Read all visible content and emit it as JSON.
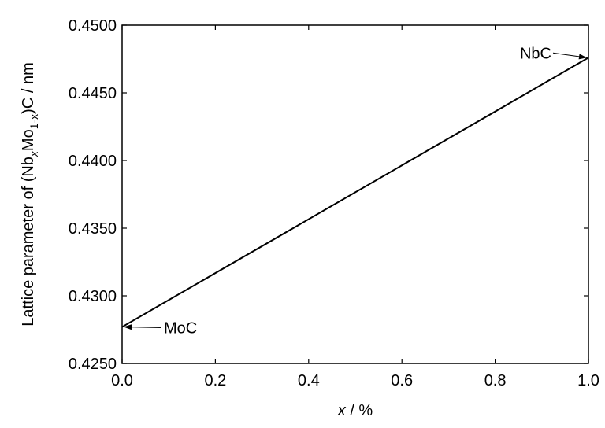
{
  "chart_data": {
    "type": "line",
    "title": "",
    "xlabel": {
      "italic": "x",
      "rest": " / %"
    },
    "ylabel": {
      "part1": "Lattice parameter of (Nb",
      "sub1": "x",
      "part2": "Mo",
      "sub2": "1-x",
      "part3": ")C / nm"
    },
    "xlim": [
      0.0,
      1.0
    ],
    "ylim": [
      0.425,
      0.45
    ],
    "x_ticks": [
      0.0,
      0.2,
      0.4,
      0.6,
      0.8,
      1.0
    ],
    "x_tick_labels": [
      "0.0",
      "0.2",
      "0.4",
      "0.6",
      "0.8",
      "1.0"
    ],
    "y_ticks": [
      0.425,
      0.43,
      0.435,
      0.44,
      0.445,
      0.45
    ],
    "y_tick_labels": [
      "0.4250",
      "0.4300",
      "0.4350",
      "0.4400",
      "0.4450",
      "0.4500"
    ],
    "grid": false,
    "series": [
      {
        "x": [
          0.0,
          1.0
        ],
        "y": [
          0.4277,
          0.4476
        ]
      }
    ],
    "annotations": [
      {
        "text": "MoC",
        "x": 0.0,
        "y": 0.4277
      },
      {
        "text": "NbC",
        "x": 1.0,
        "y": 0.4476
      }
    ]
  }
}
